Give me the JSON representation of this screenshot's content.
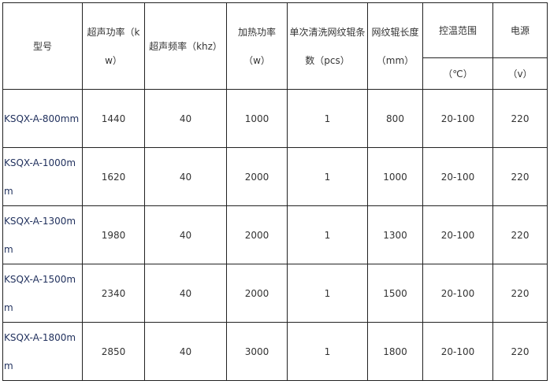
{
  "headers": {
    "model": "型号",
    "ultrasonic_power": "超声功率（kw）",
    "ultrasonic_frequency": "超声频率（khz）",
    "heating_power": "加热功率（w）",
    "rollers_per_wash": "单次清洗网纹辊条数（pcs）",
    "roller_length": "网纹辊长度（mm）",
    "temp_range": "控温范围",
    "temp_unit": "（℃）",
    "power_supply": "电源",
    "power_unit": "（v）"
  },
  "rows": [
    [
      "KSQX-A-800mm",
      "1440",
      "40",
      "1000",
      "1",
      "800",
      "20-100",
      "220"
    ],
    [
      "KSQX-A-1000mm",
      "1620",
      "40",
      "2000",
      "1",
      "1000",
      "20-100",
      "220"
    ],
    [
      "KSQX-A-1300mm",
      "1980",
      "40",
      "2000",
      "1",
      "1300",
      "20-100",
      "220"
    ],
    [
      "KSQX-A-1500mm",
      "2340",
      "40",
      "2000",
      "1",
      "1500",
      "20-100",
      "220"
    ],
    [
      "KSQX-A-1800mm",
      "2850",
      "40",
      "3000",
      "1",
      "1800",
      "20-100",
      "220"
    ]
  ]
}
